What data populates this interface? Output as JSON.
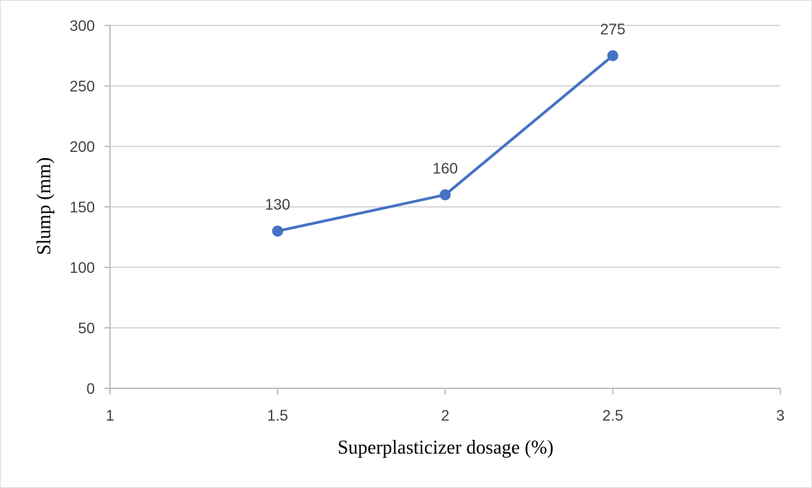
{
  "chart_data": {
    "type": "line",
    "xlabel": "Superplasticizer dosage (%)",
    "ylabel": "Slump (mm)",
    "xlim": [
      1,
      3
    ],
    "ylim": [
      0,
      300
    ],
    "x_ticks": [
      1,
      1.5,
      2,
      2.5,
      3
    ],
    "x_tick_labels": [
      "1",
      "1.5",
      "2",
      "2.5",
      "3"
    ],
    "y_ticks": [
      0,
      50,
      100,
      150,
      200,
      250,
      300
    ],
    "y_tick_labels": [
      "0",
      "50",
      "100",
      "150",
      "200",
      "250",
      "300"
    ],
    "grid": "horizontal",
    "series": [
      {
        "x": [
          1.5,
          2,
          2.5
        ],
        "y": [
          130,
          160,
          275
        ],
        "data_labels": [
          "130",
          "160",
          "275"
        ],
        "color": "#4472c4"
      }
    ]
  }
}
